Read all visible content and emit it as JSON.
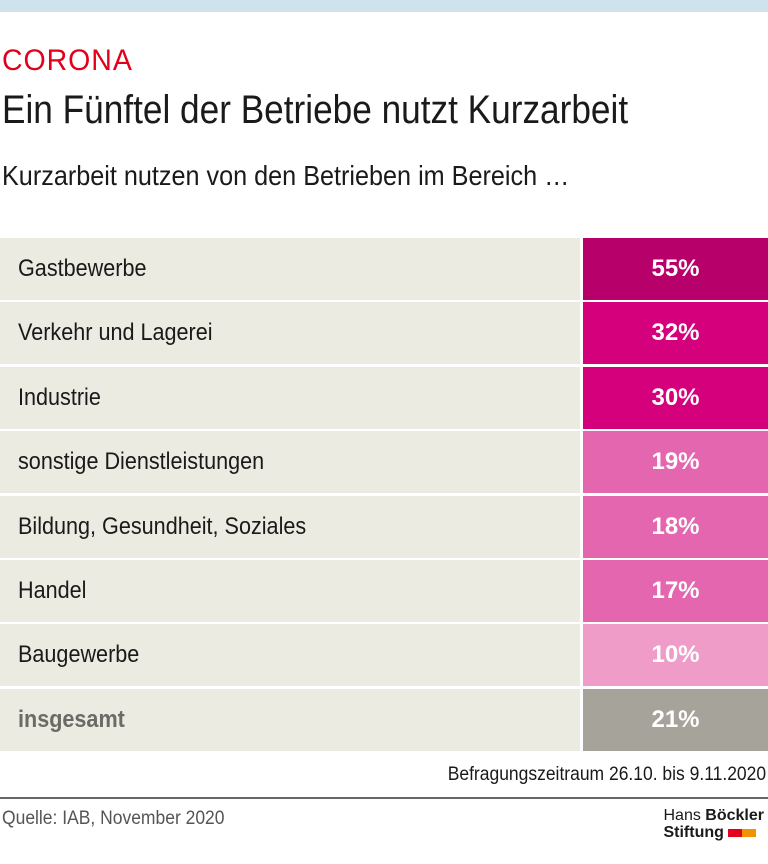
{
  "header": {
    "kicker": "CORONA",
    "title": "Ein Fünftel der Betriebe nutzt Kurzarbeit",
    "subtitle": "Kurzarbeit nutzen von den Betrieben im Bereich …"
  },
  "chart_data": {
    "type": "table",
    "title": "Ein Fünftel der Betriebe nutzt Kurzarbeit",
    "categories": [
      "Gastbewerbe",
      "Verkehr und Lagerei",
      "Industrie",
      "sonstige Dienstleistungen",
      "Bildung, Gesundheit, Soziales",
      "Handel",
      "Baugewerbe",
      "insgesamt"
    ],
    "values": [
      55,
      32,
      30,
      19,
      18,
      17,
      10,
      21
    ],
    "labels": [
      "55%",
      "32%",
      "30%",
      "19%",
      "18%",
      "17%",
      "10%",
      "21%"
    ],
    "colors": [
      "#b8006a",
      "#d4007c",
      "#d4007c",
      "#e466ae",
      "#e466ae",
      "#e466ae",
      "#f09cc9",
      "#a5a39a"
    ],
    "unit": "%"
  },
  "footer": {
    "period": "Befragungszeitraum 26.10. bis 9.11.2020",
    "source": "Quelle: IAB, November 2020",
    "logo_line1_a": "Hans",
    "logo_line1_b": "Böckler",
    "logo_line2": "Stiftung",
    "logo_colors": [
      "#e2001a",
      "#f39200"
    ]
  }
}
